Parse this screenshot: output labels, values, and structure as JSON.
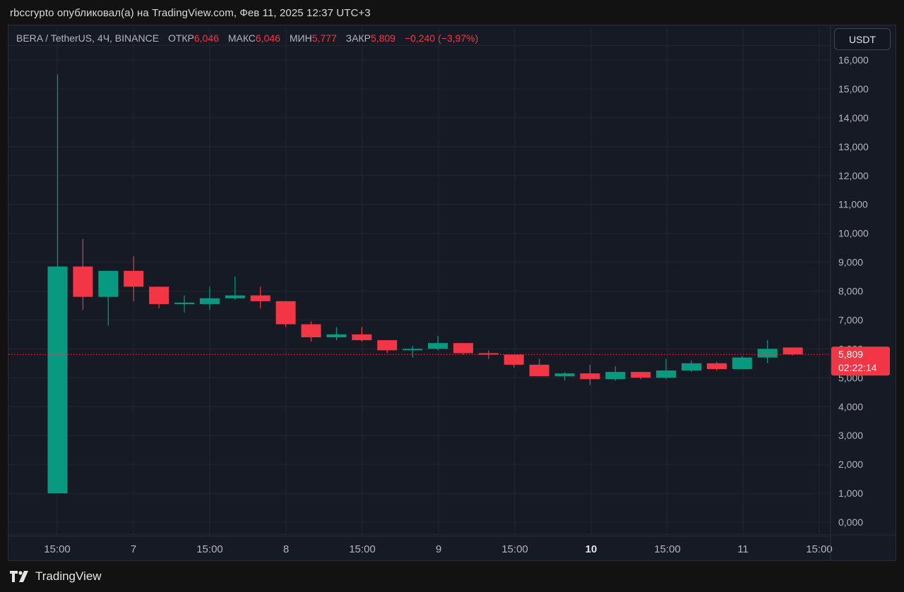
{
  "header": {
    "text": "rbccrypto опубликовал(а) на TradingView.com, Фев 11, 2025 12:37 UTC+3"
  },
  "legend": {
    "symbol": "BERA / TetherUS, 4Ч, BINANCE",
    "open_label": "ОТКР",
    "open": "6,046",
    "high_label": "МАКС",
    "high": "6,046",
    "low_label": "МИН",
    "low": "5,777",
    "close_label": "ЗАКР",
    "close": "5,809",
    "change": "−0,240 (−3,97%)"
  },
  "currency_button": "USDT",
  "footer": {
    "brand": "TradingView"
  },
  "colors": {
    "up": "#089981",
    "down": "#f23645",
    "grid": "#232733",
    "axis_text": "#b2b5be",
    "background": "#161a25"
  },
  "chart_data": {
    "type": "candlestick",
    "ylim": [
      0,
      16.6
    ],
    "y_ticks": [
      "0,000",
      "1,000",
      "2,000",
      "3,000",
      "4,000",
      "5,000",
      "6,000",
      "7,000",
      "8,000",
      "9,000",
      "10,000",
      "11,000",
      "12,000",
      "13,000",
      "14,000",
      "15,000",
      "16,000"
    ],
    "x_ticks": [
      {
        "label": "15:00",
        "bold": false
      },
      {
        "label": "7",
        "bold": false
      },
      {
        "label": "15:00",
        "bold": false
      },
      {
        "label": "8",
        "bold": false
      },
      {
        "label": "15:00",
        "bold": false
      },
      {
        "label": "9",
        "bold": false
      },
      {
        "label": "15:00",
        "bold": false
      },
      {
        "label": "10",
        "bold": true
      },
      {
        "label": "15:00",
        "bold": false
      },
      {
        "label": "11",
        "bold": false
      },
      {
        "label": "15:00",
        "bold": false
      }
    ],
    "candles": [
      {
        "o": 1.0,
        "h": 15.5,
        "l": 1.0,
        "c": 8.85
      },
      {
        "o": 8.85,
        "h": 9.8,
        "l": 7.35,
        "c": 7.8
      },
      {
        "o": 7.8,
        "h": 8.7,
        "l": 6.8,
        "c": 8.7
      },
      {
        "o": 8.7,
        "h": 9.2,
        "l": 7.65,
        "c": 8.15
      },
      {
        "o": 8.15,
        "h": 8.15,
        "l": 7.4,
        "c": 7.55
      },
      {
        "o": 7.55,
        "h": 7.85,
        "l": 7.25,
        "c": 7.6
      },
      {
        "o": 7.55,
        "h": 8.15,
        "l": 7.35,
        "c": 7.75
      },
      {
        "o": 7.75,
        "h": 8.5,
        "l": 7.7,
        "c": 7.85
      },
      {
        "o": 7.85,
        "h": 8.15,
        "l": 7.4,
        "c": 7.65
      },
      {
        "o": 7.65,
        "h": 7.65,
        "l": 6.75,
        "c": 6.85
      },
      {
        "o": 6.85,
        "h": 6.95,
        "l": 6.25,
        "c": 6.4
      },
      {
        "o": 6.4,
        "h": 6.75,
        "l": 6.3,
        "c": 6.5
      },
      {
        "o": 6.5,
        "h": 6.75,
        "l": 6.25,
        "c": 6.3
      },
      {
        "o": 6.3,
        "h": 6.3,
        "l": 5.85,
        "c": 5.95
      },
      {
        "o": 5.95,
        "h": 6.1,
        "l": 5.7,
        "c": 6.0
      },
      {
        "o": 6.0,
        "h": 6.45,
        "l": 5.95,
        "c": 6.2
      },
      {
        "o": 6.2,
        "h": 6.2,
        "l": 5.8,
        "c": 5.85
      },
      {
        "o": 5.85,
        "h": 5.95,
        "l": 5.65,
        "c": 5.8
      },
      {
        "o": 5.8,
        "h": 5.8,
        "l": 5.35,
        "c": 5.45
      },
      {
        "o": 5.45,
        "h": 5.65,
        "l": 5.05,
        "c": 5.05
      },
      {
        "o": 5.05,
        "h": 5.2,
        "l": 4.9,
        "c": 5.15
      },
      {
        "o": 5.15,
        "h": 5.45,
        "l": 4.75,
        "c": 4.95
      },
      {
        "o": 4.95,
        "h": 5.4,
        "l": 4.9,
        "c": 5.2
      },
      {
        "o": 5.2,
        "h": 5.2,
        "l": 4.95,
        "c": 5.0
      },
      {
        "o": 5.0,
        "h": 5.65,
        "l": 4.95,
        "c": 5.25
      },
      {
        "o": 5.25,
        "h": 5.6,
        "l": 5.2,
        "c": 5.5
      },
      {
        "o": 5.5,
        "h": 5.55,
        "l": 5.25,
        "c": 5.3
      },
      {
        "o": 5.3,
        "h": 5.75,
        "l": 5.3,
        "c": 5.7
      },
      {
        "o": 5.7,
        "h": 6.3,
        "l": 5.5,
        "c": 6.0
      },
      {
        "o": 6.046,
        "h": 6.046,
        "l": 5.777,
        "c": 5.809
      }
    ],
    "last_price": {
      "value": 5.809,
      "label": "5,809",
      "countdown": "02:22:14"
    }
  }
}
